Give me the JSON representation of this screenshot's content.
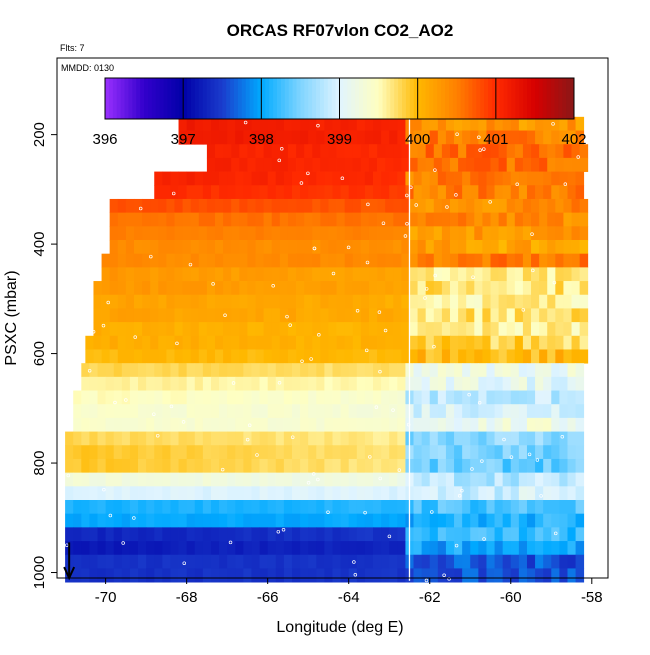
{
  "chart_data": {
    "type": "heatmap",
    "title": "ORCAS RF07vlon CO2_AO2",
    "subtitle": "Flts: 7",
    "annotation": "MMDD: 0130",
    "xlabel": "Longitude (deg E)",
    "ylabel": "PSXC (mbar)",
    "xlim": [
      -71.2,
      -57.6
    ],
    "ylim": [
      1010,
      60
    ],
    "x_ticks": [
      -70,
      -68,
      -66,
      -64,
      -62,
      -60,
      -58
    ],
    "y_ticks": [
      200,
      400,
      600,
      800,
      1000
    ],
    "colorbar": {
      "range": [
        396,
        402
      ],
      "ticks": [
        396,
        397,
        398,
        399,
        400,
        401,
        402
      ],
      "stops": [
        [
          396.0,
          "#9a30ff"
        ],
        [
          396.5,
          "#3300cc"
        ],
        [
          397.0,
          "#0000a8"
        ],
        [
          397.5,
          "#1a3ccc"
        ],
        [
          398.0,
          "#00aaff"
        ],
        [
          398.5,
          "#7fd4ff"
        ],
        [
          399.0,
          "#e0f4ff"
        ],
        [
          399.5,
          "#ffffc0"
        ],
        [
          400.0,
          "#ffb800"
        ],
        [
          400.5,
          "#ff8000"
        ],
        [
          401.0,
          "#ff2a00"
        ],
        [
          401.5,
          "#d60000"
        ],
        [
          402.0,
          "#8a1818"
        ]
      ]
    },
    "pressure_rows": [
      {
        "p": 180,
        "west": -68.2,
        "wv": 401.2,
        "ev": 400.3
      },
      {
        "p": 205,
        "west": -68.2,
        "wv": 401.2,
        "ev": 400.5
      },
      {
        "p": 230,
        "west": -67.5,
        "wv": 401.1,
        "ev": 400.6
      },
      {
        "p": 255,
        "west": -67.5,
        "wv": 401.1,
        "ev": 400.6
      },
      {
        "p": 280,
        "west": -68.8,
        "wv": 401.1,
        "ev": 400.5
      },
      {
        "p": 305,
        "west": -68.8,
        "wv": 401.0,
        "ev": 400.5
      },
      {
        "p": 330,
        "west": -69.9,
        "wv": 400.8,
        "ev": 400.4
      },
      {
        "p": 355,
        "west": -69.9,
        "wv": 400.6,
        "ev": 400.4
      },
      {
        "p": 380,
        "west": -69.9,
        "wv": 400.5,
        "ev": 400.3
      },
      {
        "p": 405,
        "west": -69.9,
        "wv": 400.4,
        "ev": 400.2
      },
      {
        "p": 430,
        "west": -70.1,
        "wv": 400.4,
        "ev": 400.5
      },
      {
        "p": 455,
        "west": -70.1,
        "wv": 400.3,
        "ev": 399.6
      },
      {
        "p": 480,
        "west": -70.3,
        "wv": 400.3,
        "ev": 399.7
      },
      {
        "p": 505,
        "west": -70.3,
        "wv": 400.2,
        "ev": 399.6
      },
      {
        "p": 530,
        "west": -70.3,
        "wv": 400.2,
        "ev": 399.7
      },
      {
        "p": 555,
        "west": -70.3,
        "wv": 400.1,
        "ev": 399.6
      },
      {
        "p": 580,
        "west": -70.5,
        "wv": 400.1,
        "ev": 399.8
      },
      {
        "p": 605,
        "west": -70.5,
        "wv": 400.0,
        "ev": 400.0
      },
      {
        "p": 630,
        "west": -70.6,
        "wv": 399.8,
        "ev": 399.2
      },
      {
        "p": 655,
        "west": -70.6,
        "wv": 399.6,
        "ev": 399.1
      },
      {
        "p": 680,
        "west": -70.8,
        "wv": 399.5,
        "ev": 398.8
      },
      {
        "p": 705,
        "west": -70.8,
        "wv": 399.4,
        "ev": 399.0
      },
      {
        "p": 730,
        "west": -70.8,
        "wv": 399.4,
        "ev": 399.2
      },
      {
        "p": 755,
        "west": -71.0,
        "wv": 399.8,
        "ev": 398.6
      },
      {
        "p": 780,
        "west": -71.0,
        "wv": 399.9,
        "ev": 398.5
      },
      {
        "p": 805,
        "west": -71.0,
        "wv": 399.9,
        "ev": 398.4
      },
      {
        "p": 830,
        "west": -71.0,
        "wv": 399.3,
        "ev": 398.8
      },
      {
        "p": 855,
        "west": -71.0,
        "wv": 399.0,
        "ev": 398.9
      },
      {
        "p": 880,
        "west": -71.0,
        "wv": 398.1,
        "ev": 398.3
      },
      {
        "p": 905,
        "west": -71.0,
        "wv": 398.0,
        "ev": 398.1
      },
      {
        "p": 930,
        "west": -71.0,
        "wv": 397.3,
        "ev": 398.2
      },
      {
        "p": 955,
        "west": -71.0,
        "wv": 397.2,
        "ev": 398.0
      },
      {
        "p": 980,
        "west": -71.0,
        "wv": 397.4,
        "ev": 397.6
      },
      {
        "p": 1005,
        "west": -71.0,
        "wv": 397.4,
        "ev": 397.6
      }
    ],
    "vertical_line_x": -62.5,
    "arrow_x": -70.9
  }
}
